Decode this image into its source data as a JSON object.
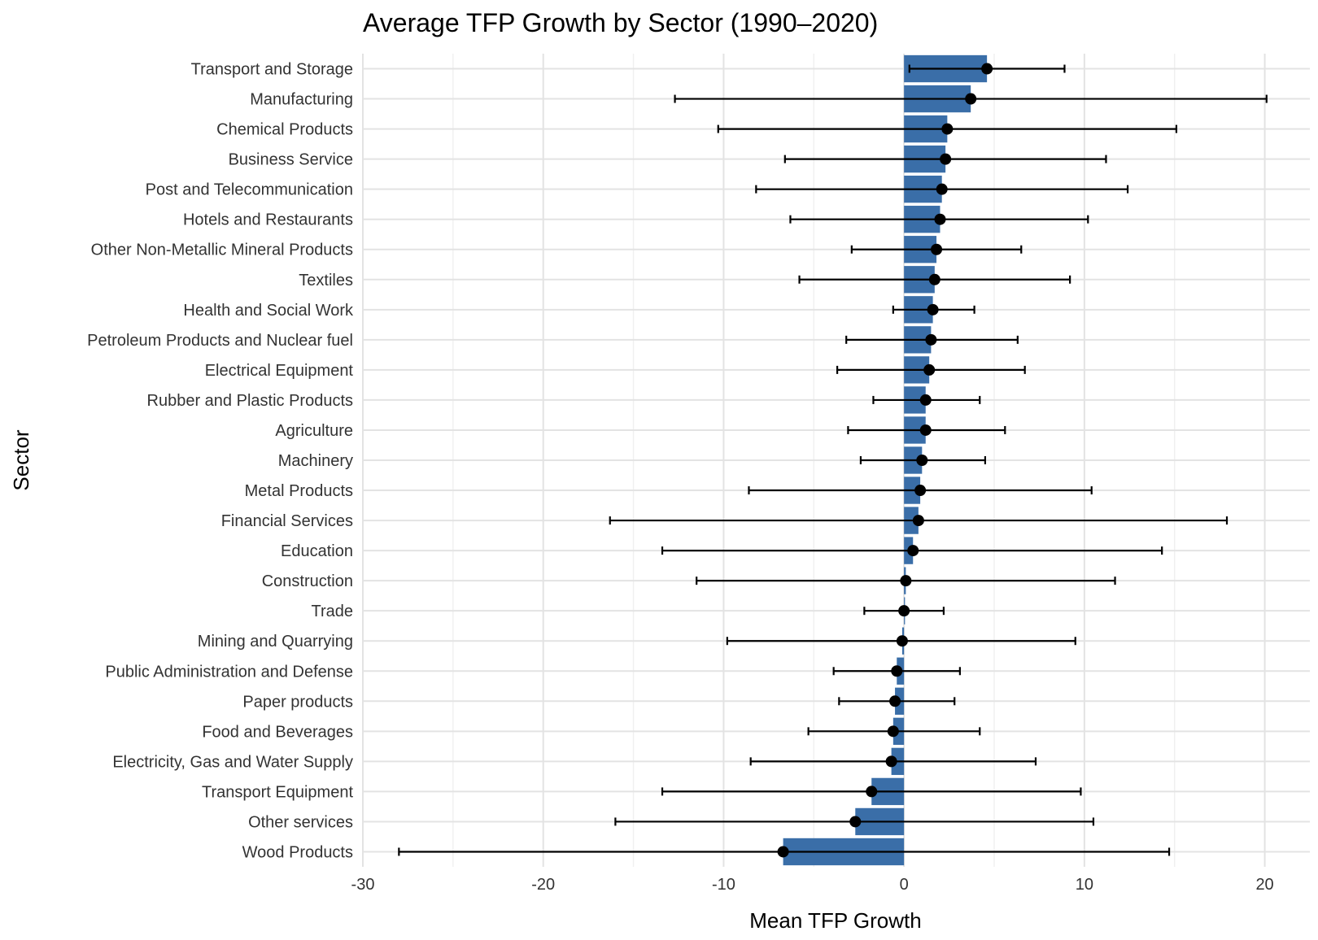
{
  "chart_data": {
    "type": "bar",
    "orientation": "horizontal",
    "title": "Average TFP Growth by Sector (1990–2020)",
    "xlabel": "Mean TFP Growth",
    "ylabel": "Sector",
    "xlim": [
      -30,
      22.5
    ],
    "xticks": [
      -30,
      -20,
      -10,
      0,
      10,
      20
    ],
    "grid": true,
    "legend": "none",
    "colors": {
      "bar": "#3a6ea8",
      "point": "#000000",
      "errorbar": "#000000"
    },
    "categories": [
      "Transport and Storage",
      "Manufacturing",
      "Chemical Products",
      "Business Service",
      "Post and Telecommunication",
      "Hotels and Restaurants",
      "Other Non-Metallic Mineral Products",
      "Textiles",
      "Health and Social Work",
      "Petroleum Products and Nuclear fuel",
      "Electrical Equipment",
      "Rubber and Plastic Products",
      "Agriculture",
      "Machinery",
      "Metal Products",
      "Financial Services",
      "Education",
      "Construction",
      "Trade",
      "Mining and Quarrying",
      "Public Administration and Defense",
      "Paper products",
      "Food and Beverages",
      "Electricity, Gas and Water Supply",
      "Transport Equipment",
      "Other services",
      "Wood Products"
    ],
    "values": [
      4.6,
      3.7,
      2.4,
      2.3,
      2.1,
      2.0,
      1.8,
      1.7,
      1.6,
      1.5,
      1.4,
      1.2,
      1.2,
      1.0,
      0.9,
      0.8,
      0.5,
      0.1,
      0.0,
      -0.1,
      -0.4,
      -0.5,
      -0.6,
      -0.7,
      -1.8,
      -2.7,
      -6.7
    ],
    "error_low": [
      0.3,
      -12.7,
      -10.3,
      -6.6,
      -8.2,
      -6.3,
      -2.9,
      -5.8,
      -0.6,
      -3.2,
      -3.7,
      -1.7,
      -3.1,
      -2.4,
      -8.6,
      -16.3,
      -13.4,
      -11.5,
      -2.2,
      -9.8,
      -3.9,
      -3.6,
      -5.3,
      -8.5,
      -13.4,
      -16.0,
      -28.0
    ],
    "error_high": [
      8.9,
      20.1,
      15.1,
      11.2,
      12.4,
      10.2,
      6.5,
      9.2,
      3.9,
      6.3,
      6.7,
      4.2,
      5.6,
      4.5,
      10.4,
      17.9,
      14.3,
      11.7,
      2.2,
      9.5,
      3.1,
      2.8,
      4.2,
      7.3,
      9.8,
      10.5,
      14.7
    ]
  }
}
